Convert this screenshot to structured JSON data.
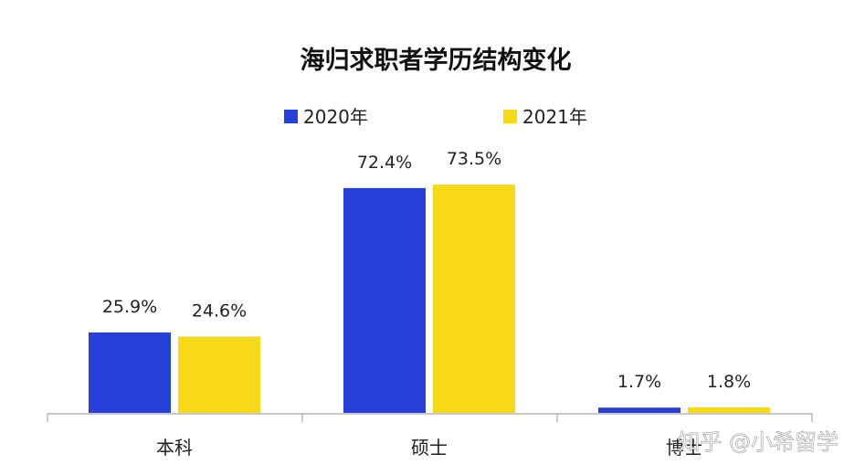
{
  "chart_data": {
    "type": "bar",
    "title": "海归求职者学历结构变化",
    "categories": [
      "本科",
      "硕士",
      "博士"
    ],
    "series": [
      {
        "name": "2020年",
        "color": "#2640D8",
        "values": [
          25.9,
          72.4,
          1.7
        ],
        "labels": [
          "25.9%",
          "72.4%",
          "1.7%"
        ]
      },
      {
        "name": "2021年",
        "color": "#F7DA17",
        "values": [
          24.6,
          73.5,
          1.8
        ],
        "labels": [
          "24.6%",
          "73.5%",
          "1.8%"
        ]
      }
    ],
    "xlabel": "",
    "ylabel": "",
    "ylim": [
      0,
      80
    ],
    "grid": false,
    "legend_position": "top-center"
  },
  "watermark": {
    "text": "知乎 @小希留学"
  }
}
